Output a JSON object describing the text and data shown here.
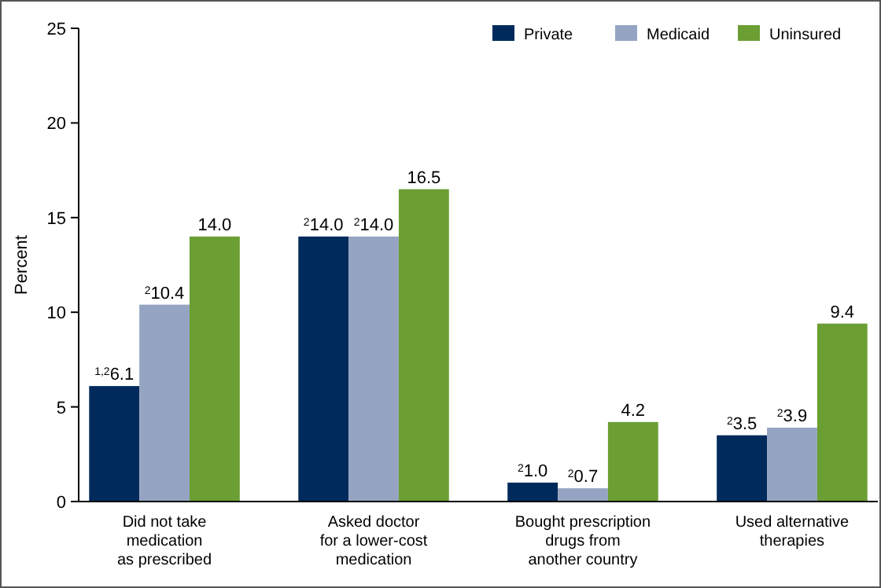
{
  "chart_data": {
    "type": "bar",
    "ylabel": "Percent",
    "categories": [
      "Did not take\nmedication\nas prescribed",
      "Asked doctor\nfor a lower-cost\nmedication",
      "Bought prescription\ndrugs from\nanother country",
      "Used alternative\ntherapies"
    ],
    "series": [
      {
        "name": "Private",
        "color": "#002a5c",
        "values": [
          6.1,
          14.0,
          1.0,
          3.5
        ],
        "value_labels": [
          "$^{1,2}$6.1",
          "$^{2}$14.0",
          "$^{2}$1.0",
          "$^{2}$3.5"
        ]
      },
      {
        "name": "Medicaid",
        "color": "#95a4c2",
        "values": [
          10.4,
          14.0,
          0.7,
          3.9
        ],
        "value_labels": [
          "$^{2}$10.4",
          "$^{2}$14.0",
          "$^{2}$0.7",
          "$^{2}$3.9"
        ]
      },
      {
        "name": "Uninsured",
        "color": "#6b9e33",
        "values": [
          14.0,
          16.5,
          4.2,
          9.4
        ],
        "value_labels": [
          "14.0",
          "16.5",
          "4.2",
          "9.4"
        ]
      }
    ],
    "ylim": [
      0,
      25
    ],
    "yticks": [
      0,
      5,
      10,
      15,
      20,
      25
    ],
    "grid": false,
    "legend": "top right"
  }
}
